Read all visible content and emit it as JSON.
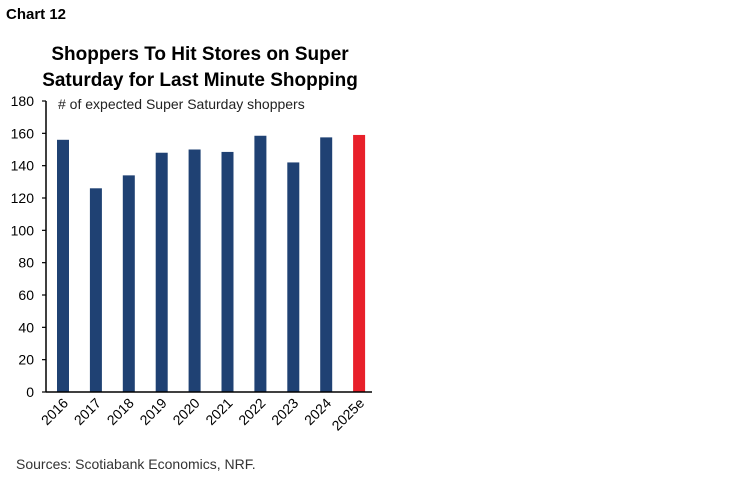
{
  "chart_label": "Chart 12",
  "source": "Sources: Scotiabank Economics, NRF.",
  "chart_data": {
    "type": "bar",
    "title_lines": [
      "Shoppers To Hit Stores on Super",
      "Saturday for Last Minute Shopping"
    ],
    "annotation": "# of expected Super Saturday shoppers",
    "categories": [
      "2016",
      "2017",
      "2018",
      "2019",
      "2020",
      "2021",
      "2022",
      "2023",
      "2024",
      "2025e"
    ],
    "values": [
      156,
      126,
      134,
      148,
      150,
      148.5,
      158.5,
      142,
      157.5,
      159
    ],
    "highlight_index": 9,
    "colors": {
      "bar": "#1f4173",
      "highlight": "#e8202a",
      "axis": "#000000"
    },
    "ylim": [
      0,
      180
    ],
    "yticks": [
      0,
      20,
      40,
      60,
      80,
      100,
      120,
      140,
      160,
      180
    ],
    "xlabel": "",
    "ylabel": "",
    "grid": false
  }
}
